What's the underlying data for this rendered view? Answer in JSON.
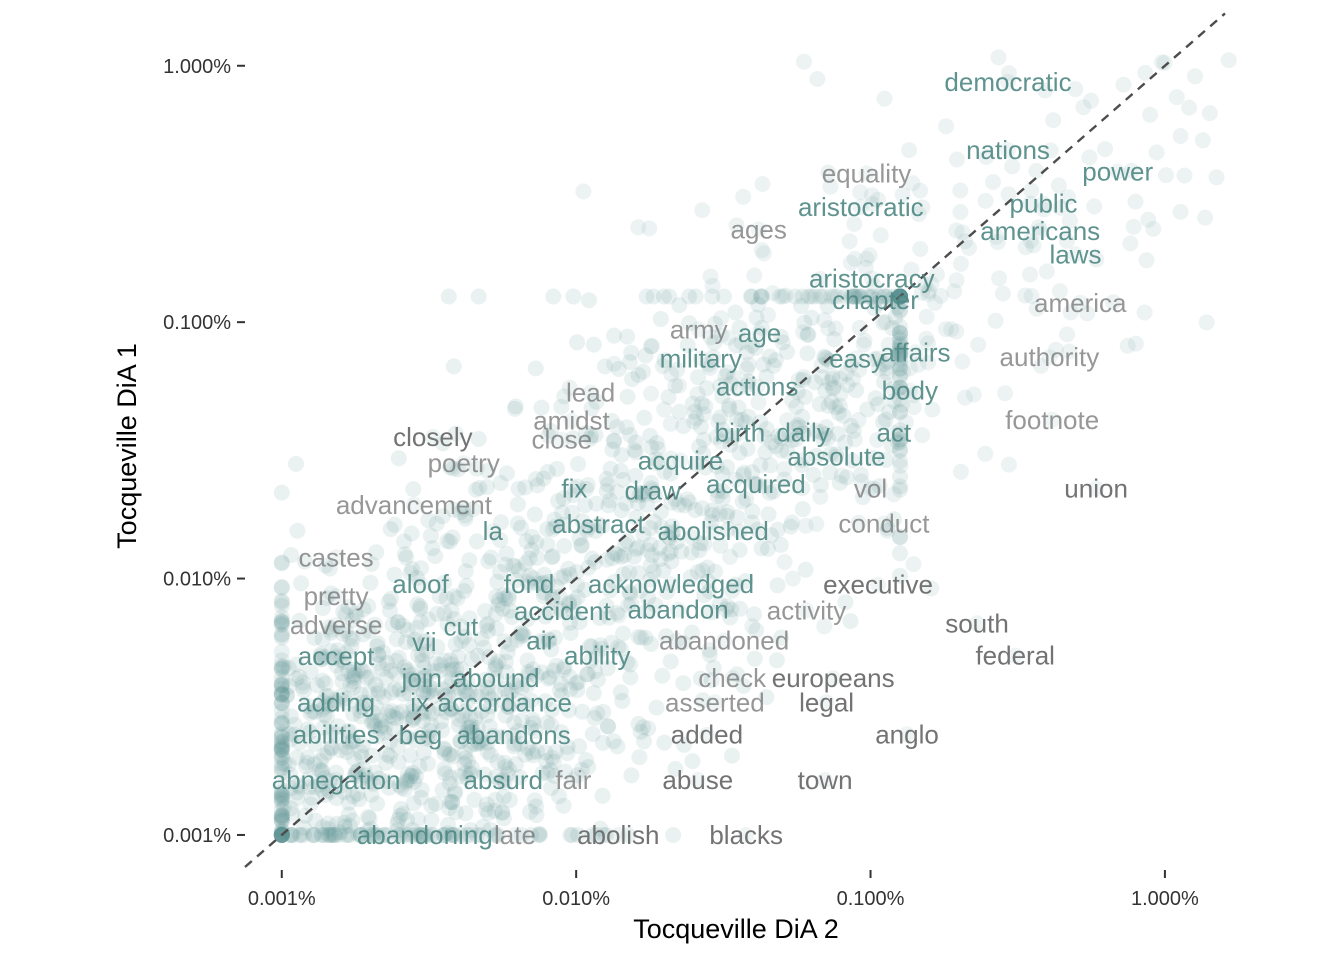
{
  "chart_data": {
    "type": "scatter",
    "title": "",
    "xlabel": "Tocqueville DiA 2",
    "ylabel": "Tocqueville DiA 1",
    "x_scale": "log10",
    "y_scale": "log10",
    "xlim": [
      7.5e-06,
      0.016
    ],
    "ylim": [
      7.3e-06,
      0.0165
    ],
    "x_ticks": [
      {
        "value": 1e-05,
        "label": "0.001%"
      },
      {
        "value": 0.0001,
        "label": "0.010%"
      },
      {
        "value": 0.001,
        "label": "0.100%"
      },
      {
        "value": 0.01,
        "label": "1.000%"
      }
    ],
    "y_ticks": [
      {
        "value": 1e-05,
        "label": "0.001%"
      },
      {
        "value": 0.0001,
        "label": "0.010%"
      },
      {
        "value": 0.001,
        "label": "0.100%"
      },
      {
        "value": 0.01,
        "label": "1.000%"
      }
    ],
    "reference_line": "y = x",
    "point_color": "#5F9592",
    "label_color_near": "#4E8783",
    "label_color_far": "#6B6B6B",
    "grid": false,
    "labels": [
      {
        "word": "democratic",
        "x": 0.00293,
        "y": 0.00866
      },
      {
        "word": "nations",
        "x": 0.00293,
        "y": 0.00469
      },
      {
        "word": "power",
        "x": 0.00691,
        "y": 0.00387
      },
      {
        "word": "equality",
        "x": 0.000969,
        "y": 0.0038
      },
      {
        "word": "public",
        "x": 0.00387,
        "y": 0.0029
      },
      {
        "word": "aristocratic",
        "x": 0.000927,
        "y": 0.00281
      },
      {
        "word": "americans",
        "x": 0.00377,
        "y": 0.00227
      },
      {
        "word": "ages",
        "x": 0.000417,
        "y": 0.0023
      },
      {
        "word": "laws",
        "x": 0.00497,
        "y": 0.00184
      },
      {
        "word": "aristocracy",
        "x": 0.00101,
        "y": 0.00148
      },
      {
        "word": "chapter",
        "x": 0.00104,
        "y": 0.00122
      },
      {
        "word": "america",
        "x": 0.00516,
        "y": 0.00119
      },
      {
        "word": "army",
        "x": 0.000261,
        "y": 0.000937
      },
      {
        "word": "age",
        "x": 0.00042,
        "y": 0.000906
      },
      {
        "word": "military",
        "x": 0.000265,
        "y": 0.000723
      },
      {
        "word": "easy",
        "x": 0.000897,
        "y": 0.000723
      },
      {
        "word": "affairs",
        "x": 0.00142,
        "y": 0.000763
      },
      {
        "word": "authority",
        "x": 0.00405,
        "y": 0.00073
      },
      {
        "word": "actions",
        "x": 0.000412,
        "y": 0.00056
      },
      {
        "word": "body",
        "x": 0.00136,
        "y": 0.000541
      },
      {
        "word": "lead",
        "x": 0.000112,
        "y": 0.000531
      },
      {
        "word": "amidst",
        "x": 9.64e-05,
        "y": 0.000413
      },
      {
        "word": "footnote",
        "x": 0.00414,
        "y": 0.000416
      },
      {
        "word": "birth",
        "x": 0.00036,
        "y": 0.000371
      },
      {
        "word": "daily",
        "x": 0.00059,
        "y": 0.000371
      },
      {
        "word": "act",
        "x": 0.0012,
        "y": 0.000371
      },
      {
        "word": "closely",
        "x": 3.26e-05,
        "y": 0.000357
      },
      {
        "word": "close",
        "x": 8.94e-05,
        "y": 0.000348
      },
      {
        "word": "absolute",
        "x": 0.000766,
        "y": 0.000299
      },
      {
        "word": "acquire",
        "x": 0.000226,
        "y": 0.000289
      },
      {
        "word": "poetry",
        "x": 4.15e-05,
        "y": 0.000282
      },
      {
        "word": "acquired",
        "x": 0.000408,
        "y": 0.000234
      },
      {
        "word": "fix",
        "x": 9.86e-05,
        "y": 0.000225
      },
      {
        "word": "draw",
        "x": 0.000182,
        "y": 0.000221
      },
      {
        "word": "vol",
        "x": 0.001,
        "y": 0.000225
      },
      {
        "word": "union",
        "x": 0.00584,
        "y": 0.000225
      },
      {
        "word": "advancement",
        "x": 2.81e-05,
        "y": 0.000194
      },
      {
        "word": "abstract",
        "x": 0.000119,
        "y": 0.000163
      },
      {
        "word": "conduct",
        "x": 0.00111,
        "y": 0.000164
      },
      {
        "word": "la",
        "x": 5.21e-05,
        "y": 0.000153
      },
      {
        "word": "abolished",
        "x": 0.000292,
        "y": 0.000153
      },
      {
        "word": "castes",
        "x": 1.53e-05,
        "y": 0.000121
      },
      {
        "word": "aloof",
        "x": 2.96e-05,
        "y": 9.51e-05
      },
      {
        "word": "fond",
        "x": 6.92e-05,
        "y": 9.51e-05
      },
      {
        "word": "acknowledged",
        "x": 0.00021,
        "y": 9.51e-05
      },
      {
        "word": "executive",
        "x": 0.00106,
        "y": 9.46e-05
      },
      {
        "word": "pretty",
        "x": 1.53e-05,
        "y": 8.54e-05
      },
      {
        "word": "accident",
        "x": 8.97e-05,
        "y": 7.46e-05
      },
      {
        "word": "abandon",
        "x": 0.000222,
        "y": 7.57e-05
      },
      {
        "word": "activity",
        "x": 0.000606,
        "y": 7.51e-05
      },
      {
        "word": "cut",
        "x": 4.06e-05,
        "y": 6.51e-05
      },
      {
        "word": "adverse",
        "x": 1.53e-05,
        "y": 6.59e-05
      },
      {
        "word": "south",
        "x": 0.0023,
        "y": 6.69e-05
      },
      {
        "word": "vii",
        "x": 3.05e-05,
        "y": 5.66e-05
      },
      {
        "word": "air",
        "x": 7.58e-05,
        "y": 5.73e-05
      },
      {
        "word": "abandoned",
        "x": 0.000318,
        "y": 5.73e-05
      },
      {
        "word": "accept",
        "x": 1.53e-05,
        "y": 4.98e-05
      },
      {
        "word": "ability",
        "x": 0.000118,
        "y": 5e-05
      },
      {
        "word": "federal",
        "x": 0.0031,
        "y": 5e-05
      },
      {
        "word": "join",
        "x": 2.99e-05,
        "y": 4.09e-05
      },
      {
        "word": "abound",
        "x": 5.35e-05,
        "y": 4.09e-05
      },
      {
        "word": "check",
        "x": 0.000339,
        "y": 4.09e-05
      },
      {
        "word": "europeans",
        "x": 0.000747,
        "y": 4.09e-05
      },
      {
        "word": "adding",
        "x": 1.53e-05,
        "y": 3.28e-05
      },
      {
        "word": "ix",
        "x": 2.94e-05,
        "y": 3.28e-05
      },
      {
        "word": "accordance",
        "x": 5.72e-05,
        "y": 3.28e-05
      },
      {
        "word": "asserted",
        "x": 0.000296,
        "y": 3.29e-05
      },
      {
        "word": "legal",
        "x": 0.000709,
        "y": 3.29e-05
      },
      {
        "word": "abilities",
        "x": 1.53e-05,
        "y": 2.47e-05
      },
      {
        "word": "beg",
        "x": 2.96e-05,
        "y": 2.45e-05
      },
      {
        "word": "abandons",
        "x": 6.13e-05,
        "y": 2.45e-05
      },
      {
        "word": "added",
        "x": 0.000278,
        "y": 2.46e-05
      },
      {
        "word": "anglo",
        "x": 0.00133,
        "y": 2.47e-05
      },
      {
        "word": "abnegation",
        "x": 1.53e-05,
        "y": 1.64e-05
      },
      {
        "word": "absurd",
        "x": 5.65e-05,
        "y": 1.64e-05
      },
      {
        "word": "fair",
        "x": 9.79e-05,
        "y": 1.64e-05
      },
      {
        "word": "abuse",
        "x": 0.000259,
        "y": 1.64e-05
      },
      {
        "word": "town",
        "x": 0.000701,
        "y": 1.64e-05
      },
      {
        "word": "abandoning",
        "x": 3.06e-05,
        "y": 1e-05
      },
      {
        "word": "late",
        "x": 6.2e-05,
        "y": 1e-05
      },
      {
        "word": "abolish",
        "x": 0.000139,
        "y": 1e-05
      },
      {
        "word": "blacks",
        "x": 0.000378,
        "y": 1e-05
      }
    ]
  }
}
